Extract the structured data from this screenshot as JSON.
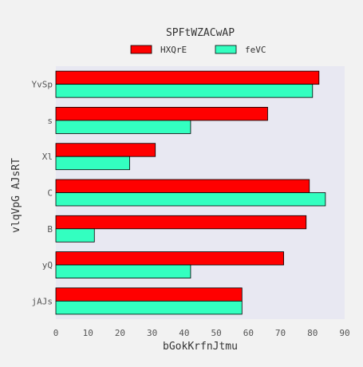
{
  "chart_data": {
    "type": "bar",
    "orientation": "horizontal",
    "title": "SPFtWZACwAP",
    "xlabel": "bGokKrfnJtmu",
    "ylabel": "vlqVpG AJsRT",
    "categories": [
      "YvSp",
      "s",
      "Xl",
      "C",
      "B",
      "yQ",
      "jAJs"
    ],
    "series": [
      {
        "name": "HXQrE",
        "color": "#ff0000",
        "values": [
          82,
          66,
          31,
          79,
          78,
          71,
          58
        ]
      },
      {
        "name": "feVC",
        "color": "#33ffc0",
        "values": [
          80,
          42,
          23,
          84,
          12,
          42,
          58
        ]
      }
    ],
    "xlim": [
      0,
      90
    ],
    "xticks": [
      0,
      10,
      20,
      30,
      40,
      50,
      60,
      70,
      80,
      90
    ],
    "grid": false,
    "legend_position": "top-center",
    "plot_background": "#e8e8f2",
    "figure_background": "#f2f2f2"
  }
}
